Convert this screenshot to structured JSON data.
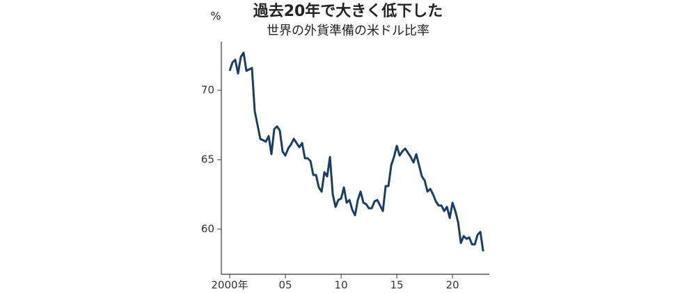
{
  "chart_data": {
    "type": "line",
    "title": "過去20年で大きく低下した",
    "subtitle": "世界の外貨準備の米ドル比率",
    "y_label": "%",
    "x": [
      2000,
      2000.25,
      2000.5,
      2000.75,
      2001,
      2001.25,
      2001.5,
      2001.75,
      2002,
      2002.25,
      2002.5,
      2002.75,
      2003,
      2003.25,
      2003.5,
      2003.75,
      2004,
      2004.25,
      2004.5,
      2004.75,
      2005,
      2005.25,
      2005.5,
      2005.75,
      2006,
      2006.25,
      2006.5,
      2006.75,
      2007,
      2007.25,
      2007.5,
      2007.75,
      2008,
      2008.25,
      2008.5,
      2008.75,
      2009,
      2009.25,
      2009.5,
      2009.75,
      2010,
      2010.25,
      2010.5,
      2010.75,
      2011,
      2011.25,
      2011.5,
      2011.75,
      2012,
      2012.25,
      2012.5,
      2012.75,
      2013,
      2013.25,
      2013.5,
      2013.75,
      2014,
      2014.25,
      2014.5,
      2014.75,
      2015,
      2015.25,
      2015.5,
      2015.75,
      2016,
      2016.25,
      2016.5,
      2016.75,
      2017,
      2017.25,
      2017.5,
      2017.75,
      2018,
      2018.25,
      2018.5,
      2018.75,
      2019,
      2019.25,
      2019.5,
      2019.75,
      2020,
      2020.25,
      2020.5,
      2020.75,
      2021,
      2021.25,
      2021.5,
      2021.75,
      2022,
      2022.25,
      2022.5,
      2022.75
    ],
    "series": [
      {
        "name": "米ドル比率",
        "color": "#1d3d60",
        "values": [
          71.4,
          72.0,
          72.2,
          71.2,
          72.4,
          72.7,
          71.4,
          71.5,
          71.6,
          68.5,
          67.5,
          66.5,
          66.4,
          66.3,
          66.7,
          65.4,
          67.2,
          67.4,
          67.1,
          65.6,
          65.3,
          65.8,
          66.1,
          66.5,
          66.2,
          65.9,
          66.2,
          65.1,
          65.1,
          64.9,
          63.9,
          63.9,
          63.0,
          62.7,
          64.1,
          63.8,
          65.2,
          62.5,
          61.6,
          62.1,
          62.2,
          63.0,
          61.9,
          62.1,
          61.4,
          61.0,
          62.1,
          62.7,
          61.9,
          61.8,
          61.5,
          61.5,
          62.0,
          62.1,
          61.7,
          61.3,
          63.1,
          63.1,
          64.6,
          65.2,
          66.0,
          65.3,
          65.6,
          65.8,
          65.5,
          65.2,
          64.8,
          65.4,
          64.6,
          63.8,
          63.5,
          62.7,
          62.9,
          62.5,
          62.0,
          61.7,
          61.7,
          61.3,
          61.6,
          60.8,
          61.9,
          61.3,
          60.5,
          59.0,
          59.5,
          59.3,
          59.4,
          58.9,
          58.9,
          59.6,
          59.8,
          58.4
        ]
      }
    ],
    "xlim": [
      1999.25,
      2023.3
    ],
    "xticks": [
      {
        "value": 2000,
        "label": "2000年"
      },
      {
        "value": 2005,
        "label": "05"
      },
      {
        "value": 2010,
        "label": "10"
      },
      {
        "value": 2015,
        "label": "15"
      },
      {
        "value": 2020,
        "label": "20"
      }
    ],
    "ylim": [
      56.75,
      73.5
    ],
    "yticks": [
      60,
      65,
      70
    ],
    "grid": false
  }
}
